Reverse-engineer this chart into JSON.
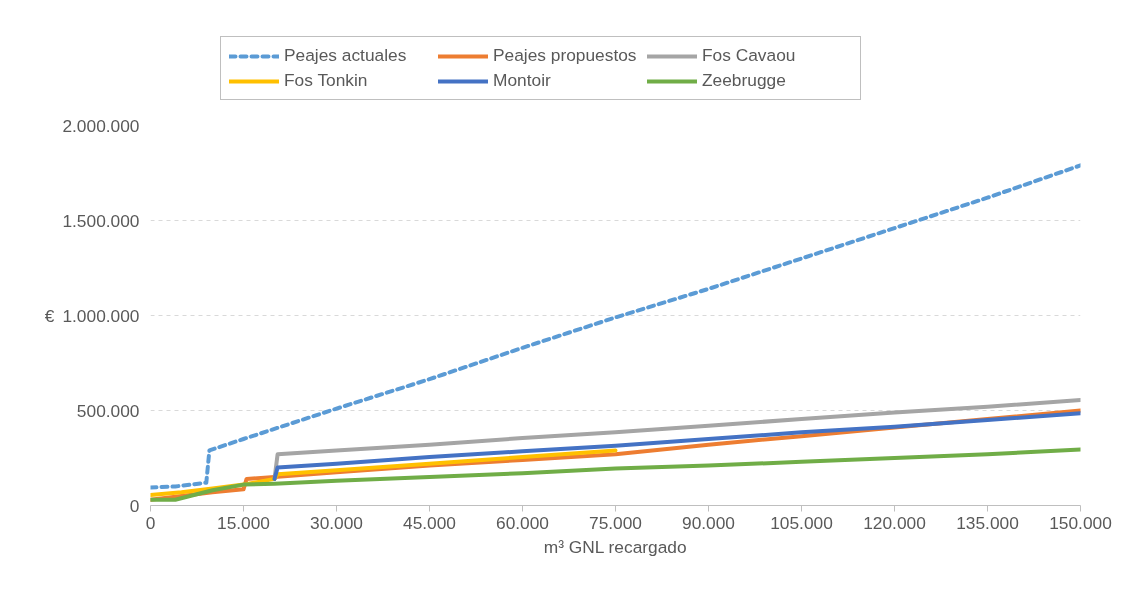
{
  "chart_data": {
    "type": "line",
    "xlabel": "m³ GNL recargado",
    "ylabel": "€",
    "xlim": [
      0,
      150000
    ],
    "ylim": [
      0,
      2000000
    ],
    "xticks": [
      {
        "value": 0,
        "label": "0"
      },
      {
        "value": 15000,
        "label": "15.000"
      },
      {
        "value": 30000,
        "label": "30.000"
      },
      {
        "value": 45000,
        "label": "45.000"
      },
      {
        "value": 60000,
        "label": "60.000"
      },
      {
        "value": 75000,
        "label": "75.000"
      },
      {
        "value": 90000,
        "label": "90.000"
      },
      {
        "value": 105000,
        "label": "105.000"
      },
      {
        "value": 120000,
        "label": "120.000"
      },
      {
        "value": 135000,
        "label": "135.000"
      },
      {
        "value": 150000,
        "label": "150.000"
      }
    ],
    "yticks": [
      {
        "value": 0,
        "label": "0"
      },
      {
        "value": 500000,
        "label": "500.000"
      },
      {
        "value": 1000000,
        "label": "1.000.000"
      },
      {
        "value": 1500000,
        "label": "1.500.000"
      },
      {
        "value": 2000000,
        "label": "2.000.000"
      }
    ],
    "grid": "y",
    "legend": "top",
    "marker": "none",
    "series": [
      {
        "name": "Peajes actuales",
        "color": "#5b9bd5",
        "line_style": "dashed",
        "x": [
          0,
          4000,
          9000,
          9500,
          15000,
          30000,
          45000,
          60000,
          75000,
          90000,
          105000,
          120000,
          135000,
          150000
        ],
        "values": [
          95000,
          100000,
          120000,
          290000,
          350000,
          510000,
          665000,
          830000,
          990000,
          1140000,
          1300000,
          1460000,
          1620000,
          1790000
        ]
      },
      {
        "name": "Peajes propuestos",
        "color": "#ed7d31",
        "x": [
          0,
          5000,
          10000,
          15000,
          15500,
          20000,
          30000,
          45000,
          60000,
          75000,
          90000,
          105000,
          120000,
          135000,
          150000
        ],
        "values": [
          30000,
          50000,
          70000,
          85000,
          140000,
          150000,
          175000,
          210000,
          240000,
          270000,
          320000,
          365000,
          410000,
          455000,
          500000
        ]
      },
      {
        "name": "Fos Cavaou",
        "color": "#a5a5a5",
        "x": [
          20000,
          20500,
          30000,
          45000,
          60000,
          75000,
          90000,
          105000,
          120000,
          135000,
          150000
        ],
        "values": [
          140000,
          270000,
          290000,
          320000,
          355000,
          385000,
          420000,
          455000,
          490000,
          520000,
          555000
        ]
      },
      {
        "name": "Fos Tonkin",
        "color": "#ffc000",
        "x": [
          0,
          5000,
          10000,
          15000,
          20000,
          20500,
          30000,
          45000,
          60000,
          75000
        ],
        "values": [
          55000,
          70000,
          90000,
          110000,
          140000,
          165000,
          185000,
          220000,
          255000,
          290000
        ]
      },
      {
        "name": "Montoir",
        "color": "#4472c4",
        "x": [
          20000,
          20500,
          30000,
          45000,
          60000,
          75000,
          90000,
          105000,
          120000,
          135000,
          150000
        ],
        "values": [
          140000,
          200000,
          220000,
          255000,
          285000,
          315000,
          350000,
          385000,
          415000,
          450000,
          485000
        ]
      },
      {
        "name": "Zeebrugge",
        "color": "#70ad47",
        "x": [
          0,
          4000,
          10000,
          15000,
          20000,
          30000,
          45000,
          60000,
          75000,
          90000,
          105000,
          120000,
          135000,
          150000
        ],
        "values": [
          30000,
          30000,
          80000,
          110000,
          115000,
          130000,
          150000,
          170000,
          195000,
          210000,
          230000,
          250000,
          270000,
          295000
        ]
      }
    ]
  }
}
